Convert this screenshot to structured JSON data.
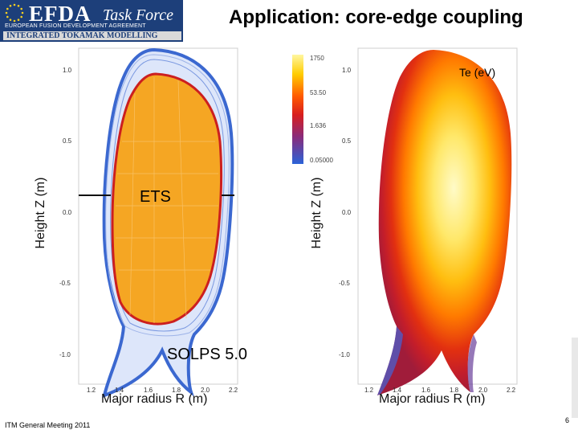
{
  "header": {
    "org_title": "EFDA",
    "task_force": "Task Force",
    "org_subtitle": "EUROPEAN FUSION DEVELOPMENT AGREEMENT",
    "program": "INTEGRATED TOKAMAK MODELLING"
  },
  "slide": {
    "title": "Application: core-edge coupling"
  },
  "left_plot": {
    "core_label": "ETS",
    "edge_label": "SOLPS 5.0",
    "ylabel": "Height Z (m)",
    "xlabel": "Major radius R (m)",
    "yticks": [
      "1.0",
      "0.5",
      "0.0",
      "-0.5",
      "-1.0"
    ],
    "xticks": [
      "1.2",
      "1.4",
      "1.6",
      "1.8",
      "2.0",
      "2.2"
    ]
  },
  "right_plot": {
    "quantity_label": "Te (eV)",
    "ylabel": "Height Z (m)",
    "xlabel": "Major radius R (m)",
    "yticks": [
      "1.0",
      "0.5",
      "0.0",
      "-0.5",
      "-1.0"
    ],
    "xticks": [
      "1.2",
      "1.4",
      "1.6",
      "1.8",
      "2.0",
      "2.2"
    ],
    "colorbar_ticks": [
      "1750",
      "53.50",
      "1.636",
      "0.05000"
    ]
  },
  "footer": {
    "meeting": "ITM General Meeting 2011",
    "page": "6"
  }
}
